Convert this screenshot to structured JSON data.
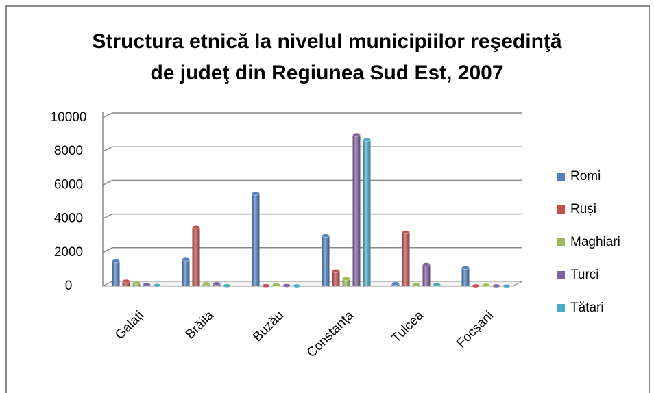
{
  "chart_data": {
    "type": "bar",
    "title": "Structura etnică la nivelul municipiilor reşedinţă\nde judeţ din Regiunea Sud Est, 2007",
    "categories": [
      "Galați",
      "Brăila",
      "Buzău",
      "Constanța",
      "Tulcea",
      "Focșani"
    ],
    "series": [
      {
        "name": "Romi",
        "color": "#4f81bd",
        "values": [
          1500,
          1600,
          5500,
          3000,
          150,
          1100
        ]
      },
      {
        "name": "Ruși",
        "color": "#c0504d",
        "values": [
          300,
          3500,
          30,
          900,
          3200,
          20
        ]
      },
      {
        "name": "Maghiari",
        "color": "#9bbb59",
        "values": [
          200,
          150,
          80,
          450,
          100,
          60
        ]
      },
      {
        "name": "Turci",
        "color": "#8064a2",
        "values": [
          100,
          150,
          40,
          9000,
          1300,
          20
        ]
      },
      {
        "name": "Tătari",
        "color": "#4bacc6",
        "values": [
          50,
          30,
          20,
          8700,
          100,
          10
        ]
      }
    ],
    "ylim": [
      0,
      10000
    ],
    "yticks": [
      0,
      2000,
      4000,
      6000,
      8000,
      10000
    ],
    "grid": true,
    "legend": "right"
  }
}
